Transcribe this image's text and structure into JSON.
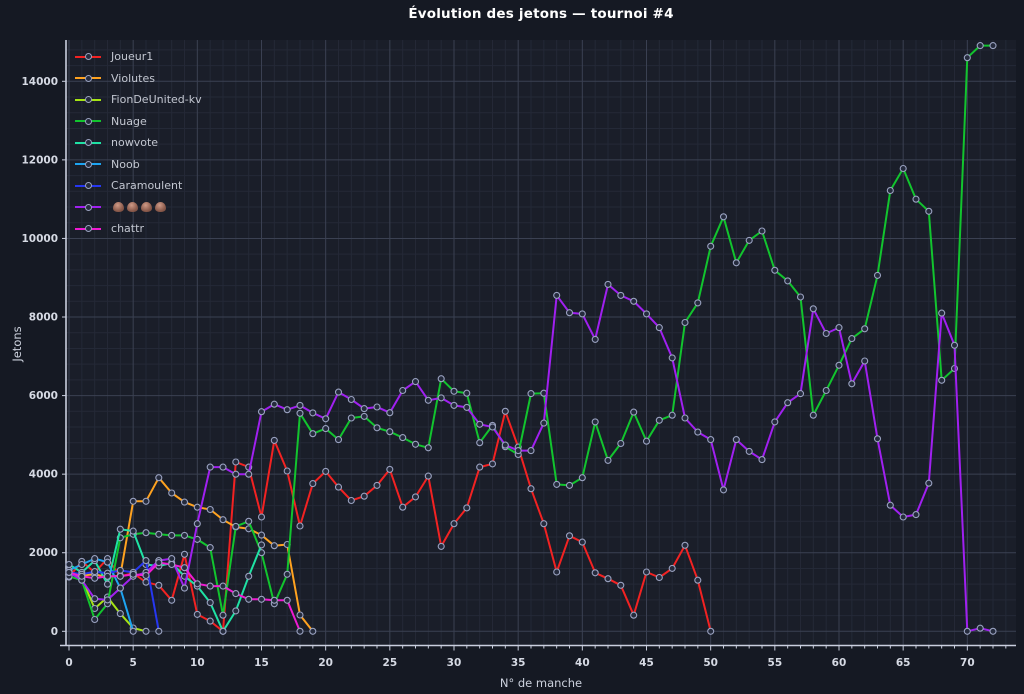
{
  "title": "Évolution des jetons — tournoi #4",
  "chart_data": {
    "type": "line",
    "title": "Évolution des jetons — tournoi #4",
    "xlabel": "N° de manche",
    "ylabel": "Jetons",
    "x_ticks": [
      0,
      5,
      10,
      15,
      20,
      25,
      30,
      35,
      40,
      45,
      50,
      55,
      60,
      65,
      70
    ],
    "y_ticks": [
      0,
      2000,
      4000,
      6000,
      8000,
      10000,
      12000,
      14000
    ],
    "xlim": [
      -0.25,
      73.8
    ],
    "ylim": [
      -360,
      15420
    ],
    "grid": true,
    "legend_position": "top-left-inside",
    "series": [
      {
        "name": "Joueur1",
        "color": "#f22222",
        "start_x": 0,
        "values": [
          1380,
          1780,
          1500,
          1850,
          1400,
          1480,
          1250,
          1170,
          790,
          1960,
          430,
          260,
          0,
          4310,
          4180,
          2910,
          4860,
          4080,
          2680,
          3760,
          4070,
          3670,
          3330,
          3440,
          3715,
          4120,
          3160,
          3420,
          3950,
          2160,
          2740,
          3140,
          4180,
          4260,
          5600,
          4690,
          3630,
          2740,
          1510,
          2430,
          2270,
          1490,
          1340,
          1170,
          410,
          1510,
          1370,
          1600,
          2190,
          1300,
          0
        ]
      },
      {
        "name": "Violutes",
        "color": "#ffa21f",
        "start_x": 0,
        "values": [
          1500,
          1420,
          1450,
          1380,
          1420,
          3310,
          3310,
          3910,
          3520,
          3290,
          3160,
          3100,
          2840,
          2655,
          2610,
          2450,
          2180,
          2210,
          415,
          0
        ]
      },
      {
        "name": "FionDeUnited-kv",
        "color": "#a6e414",
        "start_x": 0,
        "values": [
          1500,
          1340,
          580,
          870,
          450,
          85,
          0
        ]
      },
      {
        "name": "Nuage",
        "color": "#12c42e",
        "start_x": 0,
        "values": [
          1400,
          1300,
          300,
          700,
          2380,
          2470,
          2510,
          2470,
          2440,
          2440,
          2340,
          2130,
          410,
          2670,
          2800,
          2000,
          700,
          1450,
          5550,
          5030,
          5160,
          4880,
          5430,
          5470,
          5180,
          5080,
          4930,
          4760,
          4670,
          6430,
          6110,
          6060,
          4800,
          5240,
          4700,
          4500,
          6050,
          6060,
          3740,
          3715,
          3910,
          5330,
          4350,
          4780,
          5580,
          4840,
          5370,
          5500,
          7860,
          8360,
          9800,
          10550,
          9380,
          9950,
          10190,
          9190,
          8920,
          8510,
          5500,
          6130,
          6770,
          7450,
          7700,
          9060,
          11220,
          11780,
          11000,
          10690,
          6390,
          6690,
          14600,
          14910,
          14910
        ]
      },
      {
        "name": "nowvote",
        "color": "#1fe2a4",
        "start_x": 0,
        "values": [
          1700,
          1500,
          1800,
          1200,
          2600,
          2550,
          1700,
          1660,
          1740,
          1400,
          1150,
          730,
          0,
          520,
          1400,
          2200
        ]
      },
      {
        "name": "Noob",
        "color": "#1da4f2",
        "start_x": 0,
        "values": [
          1550,
          1700,
          1850,
          1760,
          1100,
          0
        ]
      },
      {
        "name": "Caramoulent",
        "color": "#2637f2",
        "start_x": 0,
        "values": [
          1500,
          1450,
          1520,
          1480,
          1550,
          1500,
          1800,
          0
        ]
      },
      {
        "name": "💩💩💩💩",
        "color": "#a020f0",
        "start_x": 0,
        "values": [
          1500,
          1300,
          830,
          800,
          1100,
          1400,
          1500,
          1800,
          1850,
          1100,
          2740,
          4180,
          4180,
          4000,
          4000,
          5590,
          5780,
          5640,
          5750,
          5560,
          5410,
          6090,
          5900,
          5670,
          5710,
          5565,
          6130,
          6355,
          5880,
          5940,
          5750,
          5700,
          5270,
          5200,
          4740,
          4600,
          4600,
          5300,
          8550,
          8110,
          8080,
          7430,
          8830,
          8550,
          8400,
          8080,
          7730,
          6960,
          5430,
          5070,
          4880,
          3600,
          4880,
          4580,
          4370,
          5330,
          5820,
          6050,
          8210,
          7580,
          7730,
          6300,
          6880,
          4900,
          3210,
          2910,
          2970,
          3770,
          8100,
          7280,
          0,
          80,
          0
        ]
      },
      {
        "name": "chattr",
        "color": "#ef1ad2",
        "start_x": 0,
        "values": [
          1500,
          1400,
          1350,
          1400,
          1400,
          1450,
          1420,
          1750,
          1700,
          1620,
          1210,
          1150,
          1150,
          960,
          814,
          814,
          790,
          790,
          0
        ]
      }
    ]
  },
  "colors": {
    "background": "#151923",
    "plot_background": "#1a1e29",
    "grid_minor": "#242937",
    "grid_major": "#3b4152",
    "axis_line": "#c9cede",
    "tick_label": "#d6dae4",
    "marker_fill": "#252b3d",
    "marker_ring": "#9aa2c0",
    "title_text": "#ffffff"
  }
}
